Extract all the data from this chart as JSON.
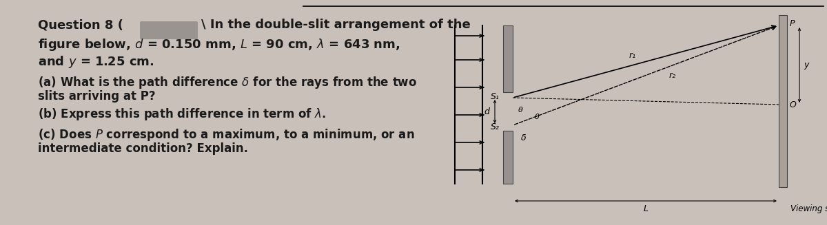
{
  "bg_color": "#c9c1b9",
  "text_color": "#1a1a1a",
  "line_top_text": "Question 8 (",
  "line_top_cont": " In the double-slit arrangement of the",
  "line2": "figure below, d = 0.150 mm, L = 90 cm, λ = 643 nm,",
  "line3": "and y = 1.25 cm.",
  "line_a1": "(a) What is the path difference δ for the rays from the two",
  "line_a2": "slits arriving at P?",
  "line_b": "(b) Express this path difference in term of λ.",
  "line_c1": "(c) Does P correspond to a maximum, to a minimum, or an",
  "line_c2": "intermediate condition? Explain.",
  "viewing_screen": "Viewing screen",
  "label_L": "L",
  "label_S1": "S₁",
  "label_S2": "S₂",
  "label_r1": "r₁",
  "label_r2": "r₂",
  "label_d": "d",
  "label_delta": "δ",
  "label_theta": "θ",
  "label_P": "P",
  "label_O": "O",
  "label_y": "y",
  "blob_color": "#9a9490",
  "diagram_color": "#b8b0a8",
  "barrier_color": "#999090",
  "screen_color": "#aaa098"
}
